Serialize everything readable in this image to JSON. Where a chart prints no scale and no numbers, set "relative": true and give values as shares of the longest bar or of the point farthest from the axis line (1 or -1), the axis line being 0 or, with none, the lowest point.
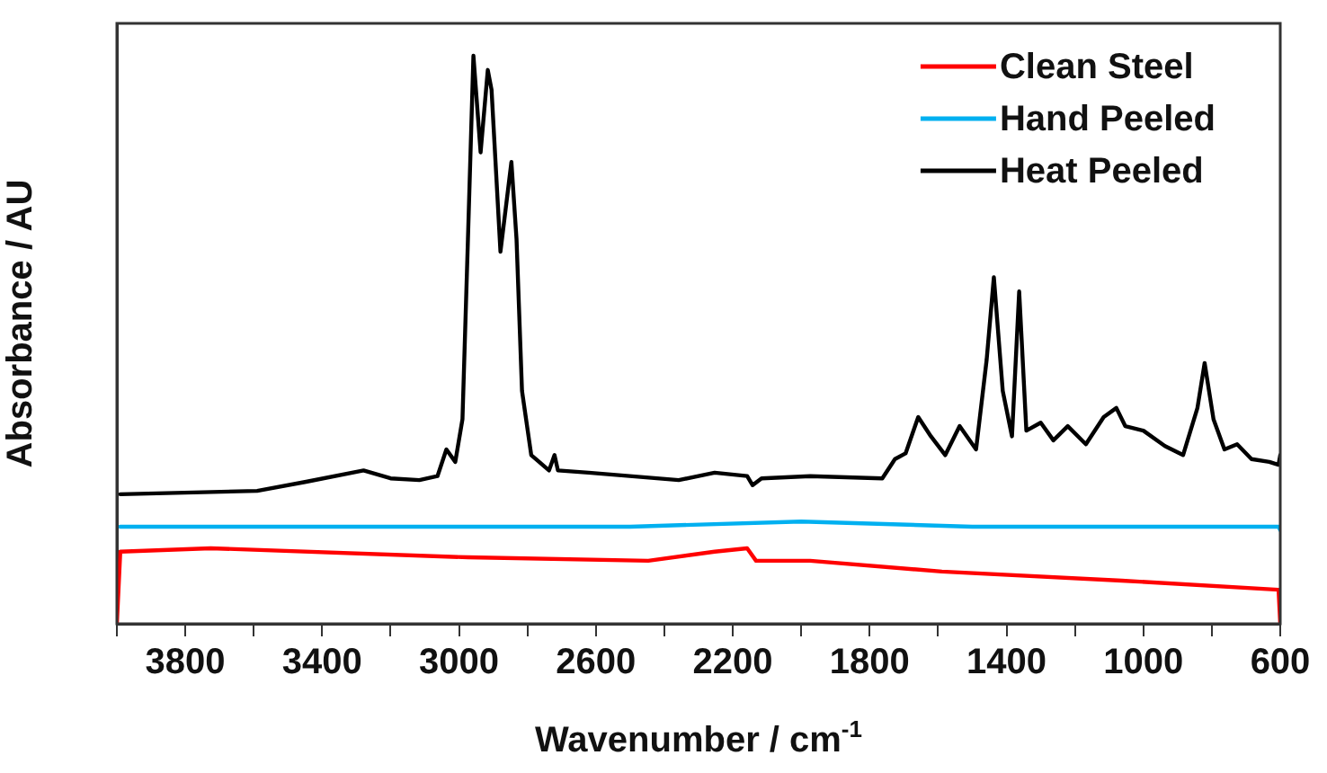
{
  "chart_data": {
    "type": "line",
    "relative": true,
    "xlabel": "Wavenumber / cm$^{-1}$",
    "ylabel": "Absorbance / AU",
    "xlim": [
      4000,
      600
    ],
    "xticks": [
      {
        "value": 4000,
        "label": null
      },
      3800,
      {
        "value": 3600,
        "label": null
      },
      3400,
      {
        "value": 3200,
        "label": null
      },
      3000,
      {
        "value": 2800,
        "label": null
      },
      2600,
      {
        "value": 2400,
        "label": null
      },
      2200,
      {
        "value": 2000,
        "label": null
      },
      1800,
      {
        "value": 1600,
        "label": null
      },
      1400,
      {
        "value": 1200,
        "label": null
      },
      1000,
      {
        "value": 800,
        "label": null
      },
      600
    ],
    "legend": "top right",
    "grid": false,
    "marker": "none",
    "line_style": "solid",
    "series": [
      {
        "name": "Clean Steel",
        "color": "#ff0000",
        "x": [
          4000,
          3990,
          3726,
          2974,
          2447,
          2253,
          2158,
          2132,
          1974,
          1589,
          1063,
          605,
          600
        ],
        "values": [
          0,
          0.127,
          0.133,
          0.117,
          0.111,
          0.127,
          0.133,
          0.111,
          0.111,
          0.092,
          0.076,
          0.06,
          0
        ]
      },
      {
        "name": "Hand Peeled",
        "color": "#00b0f0",
        "x": [
          3990,
          3500,
          3000,
          2500,
          2000,
          1500,
          1000,
          605,
          600
        ],
        "values": [
          0.171,
          0.171,
          0.171,
          0.171,
          0.18,
          0.171,
          0.171,
          0.171,
          0.165
        ]
      },
      {
        "name": "Heat Peeled",
        "color": "#000000",
        "x": [
          3990,
          3590,
          3447,
          3279,
          3200,
          3116,
          3063,
          3037,
          3011,
          2990,
          2974,
          2958,
          2937,
          2916,
          2905,
          2879,
          2847,
          2832,
          2816,
          2789,
          2737,
          2721,
          2711,
          2621,
          2358,
          2253,
          2158,
          2142,
          2116,
          1974,
          1763,
          1726,
          1695,
          1658,
          1621,
          1579,
          1537,
          1489,
          1458,
          1437,
          1411,
          1384,
          1363,
          1342,
          1300,
          1263,
          1221,
          1168,
          1116,
          1079,
          1053,
          1000,
          937,
          884,
          842,
          821,
          795,
          763,
          726,
          684,
          632,
          605,
          600
        ],
        "values": [
          0.228,
          0.234,
          0.25,
          0.27,
          0.256,
          0.253,
          0.26,
          0.307,
          0.285,
          0.36,
          0.677,
          1.0,
          0.83,
          0.975,
          0.94,
          0.655,
          0.813,
          0.677,
          0.41,
          0.297,
          0.27,
          0.297,
          0.27,
          0.266,
          0.253,
          0.266,
          0.26,
          0.244,
          0.256,
          0.26,
          0.256,
          0.29,
          0.3,
          0.364,
          0.33,
          0.297,
          0.348,
          0.307,
          0.465,
          0.61,
          0.41,
          0.33,
          0.585,
          0.34,
          0.354,
          0.323,
          0.348,
          0.316,
          0.364,
          0.38,
          0.348,
          0.34,
          0.313,
          0.297,
          0.38,
          0.459,
          0.36,
          0.307,
          0.316,
          0.29,
          0.285,
          0.28,
          0.297
        ]
      }
    ]
  }
}
